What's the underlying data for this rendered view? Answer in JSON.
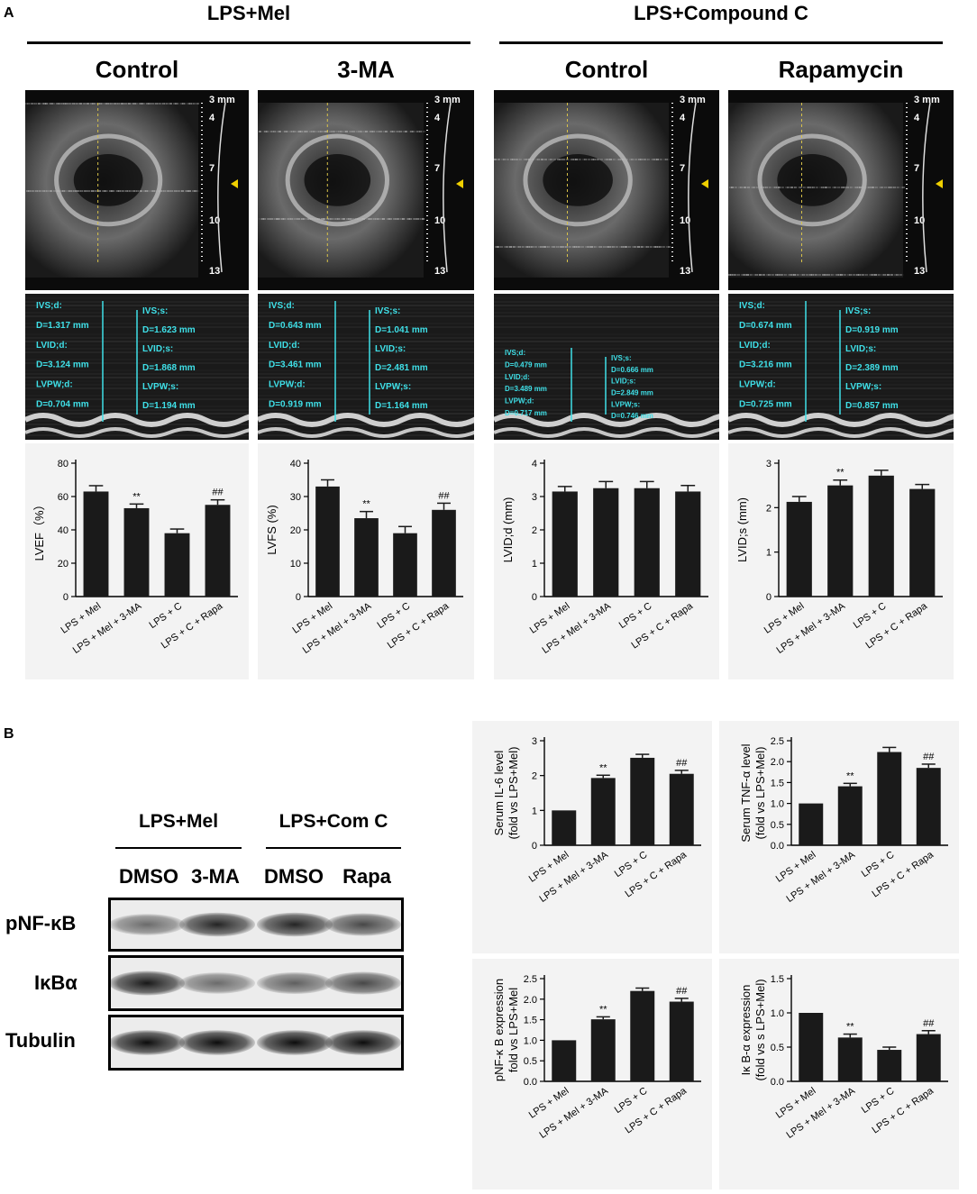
{
  "panel_labels": {
    "a": "A",
    "b": "B"
  },
  "panelA": {
    "group_titles": [
      "LPS+Mel",
      "LPS+Compound C"
    ],
    "columns": [
      {
        "title": "Control",
        "depth_labels": [
          "3 mm",
          "4",
          "7",
          "10",
          "13"
        ],
        "measures_left": [
          "IVS;d:",
          "D=1.317 mm",
          "LVID;d:",
          "D=3.124 mm",
          "LVPW;d:",
          "D=0.704 mm"
        ],
        "measures_right": [
          "IVS;s:",
          "D=1.623 mm",
          "LVID;s:",
          "D=1.868 mm",
          "LVPW;s:",
          "D=1.194 mm"
        ]
      },
      {
        "title": "3-MA",
        "depth_labels": [
          "3 mm",
          "4",
          "7",
          "10",
          "13"
        ],
        "measures_left": [
          "IVS;d:",
          "D=0.643 mm",
          "LVID;d:",
          "D=3.461 mm",
          "LVPW;d:",
          "D=0.919 mm"
        ],
        "measures_right": [
          "IVS;s:",
          "D=1.041 mm",
          "LVID;s:",
          "D=2.481 mm",
          "LVPW;s:",
          "D=1.164 mm"
        ]
      },
      {
        "title": "Control",
        "depth_labels": [
          "3 mm",
          "4",
          "7",
          "10",
          "13"
        ],
        "measures_left": [
          "IVS;d:",
          "D=0.479 mm",
          "LVID;d:",
          "D=3.489 mm",
          "LVPW;d:",
          "D=0.717 mm"
        ],
        "measures_right": [
          "IVS;s:",
          "D=0.666 mm",
          "LVID;s:",
          "D=2.849 mm",
          "LVPW;s:",
          "D=0.746 mm"
        ]
      },
      {
        "title": "Rapamycin",
        "depth_labels": [
          "3 mm",
          "4",
          "7",
          "10",
          "13"
        ],
        "measures_left": [
          "IVS;d:",
          "D=0.674 mm",
          "LVID;d:",
          "D=3.216 mm",
          "LVPW;d:",
          "D=0.725 mm"
        ],
        "measures_right": [
          "IVS;s:",
          "D=0.919 mm",
          "LVID;s:",
          "D=2.389 mm",
          "LVPW;s:",
          "D=0.857 mm"
        ]
      }
    ]
  },
  "panelB": {
    "wb_groups": [
      "LPS+Mel",
      "LPS+Com C"
    ],
    "wb_lanes": [
      "DMSO",
      "3-MA",
      "DMSO",
      "Rapa"
    ],
    "wb_rows": [
      "pNF-κB",
      "IκBα",
      "Tubulin"
    ],
    "wb_band_intensity": [
      [
        0.55,
        0.85,
        0.85,
        0.7
      ],
      [
        0.9,
        0.55,
        0.6,
        0.7
      ],
      [
        0.95,
        0.95,
        0.95,
        0.95
      ]
    ]
  },
  "chart_data": [
    {
      "type": "bar",
      "categories": [
        "LPS + Mel",
        "LPS + Mel + 3-MA",
        "LPS + C",
        "LPS + C + Rapa"
      ],
      "values": [
        63,
        53,
        38,
        55
      ],
      "errors": [
        3.5,
        2.5,
        2.5,
        3
      ],
      "annotations": [
        "",
        "**",
        "",
        "##"
      ],
      "ylabel": "LVEF（%）",
      "ylim": [
        0,
        80
      ],
      "yticks": [
        0,
        20,
        40,
        60,
        80
      ],
      "grid": false
    },
    {
      "type": "bar",
      "categories": [
        "LPS + Mel",
        "LPS + Mel + 3-MA",
        "LPS + C",
        "LPS + C + Rapa"
      ],
      "values": [
        33,
        23.5,
        19,
        26
      ],
      "errors": [
        2,
        2,
        2,
        2
      ],
      "annotations": [
        "",
        "**",
        "",
        "##"
      ],
      "ylabel": "LVFS (%)",
      "ylim": [
        0,
        40
      ],
      "yticks": [
        0,
        10,
        20,
        30,
        40
      ],
      "grid": false
    },
    {
      "type": "bar",
      "categories": [
        "LPS + Mel",
        "LPS + Mel + 3-MA",
        "LPS + C",
        "LPS + C + Rapa"
      ],
      "values": [
        3.15,
        3.25,
        3.25,
        3.15
      ],
      "errors": [
        0.15,
        0.2,
        0.2,
        0.18
      ],
      "annotations": [
        "",
        "",
        "",
        ""
      ],
      "ylabel": "LVID;d (mm)",
      "ylim": [
        0,
        4
      ],
      "yticks": [
        0,
        1,
        2,
        3,
        4
      ],
      "grid": false
    },
    {
      "type": "bar",
      "categories": [
        "LPS + Mel",
        "LPS + Mel + 3-MA",
        "LPS + C",
        "LPS + C + Rapa"
      ],
      "values": [
        2.13,
        2.5,
        2.72,
        2.42
      ],
      "errors": [
        0.12,
        0.12,
        0.12,
        0.1
      ],
      "annotations": [
        "",
        "**",
        "",
        ""
      ],
      "ylabel": "LVID;s (mm)",
      "ylim": [
        0,
        3
      ],
      "yticks": [
        0,
        1,
        2,
        3
      ],
      "grid": false
    },
    {
      "type": "bar",
      "categories": [
        "LPS + Mel",
        "LPS + Mel + 3-MA",
        "LPS + C",
        "LPS + C + Rapa"
      ],
      "values": [
        1.0,
        1.93,
        2.51,
        2.05
      ],
      "errors": [
        0,
        0.08,
        0.1,
        0.1
      ],
      "annotations": [
        "",
        "**",
        "",
        "##"
      ],
      "ylabel": "Serum IL-6  level",
      "ylabel2": "(fold vs LPS+Mel)",
      "ylim": [
        0,
        3
      ],
      "yticks": [
        0,
        1,
        2,
        3
      ],
      "grid": false
    },
    {
      "type": "bar",
      "categories": [
        "LPS + Mel",
        "LPS + Mel + 3-MA",
        "LPS + C",
        "LPS + C + Rapa"
      ],
      "values": [
        1.0,
        1.41,
        2.23,
        1.85
      ],
      "errors": [
        0,
        0.07,
        0.11,
        0.09
      ],
      "annotations": [
        "",
        "**",
        "",
        "##"
      ],
      "ylabel": "Serum TNF-α  level",
      "ylabel2": "(fold vs LPS+Mel)",
      "ylim": [
        0,
        2.5
      ],
      "yticks": [
        0.0,
        0.5,
        1.0,
        1.5,
        2.0,
        2.5
      ],
      "tick_decimals": 1,
      "grid": false
    },
    {
      "type": "bar",
      "categories": [
        "LPS + Mel",
        "LPS + Mel + 3-MA",
        "LPS + C",
        "LPS + C + Rapa"
      ],
      "values": [
        1.0,
        1.51,
        2.2,
        1.94
      ],
      "errors": [
        0,
        0.06,
        0.07,
        0.08
      ],
      "annotations": [
        "",
        "**",
        "",
        "##"
      ],
      "ylabel": "pNF-κ B expression",
      "ylabel2": "fold vs LPS+Mel",
      "ylim": [
        0,
        2.5
      ],
      "yticks": [
        0.0,
        0.5,
        1.0,
        1.5,
        2.0,
        2.5
      ],
      "tick_decimals": 1,
      "grid": false
    },
    {
      "type": "bar",
      "categories": [
        "LPS + Mel",
        "LPS + Mel + 3-MA",
        "LPS + C",
        "LPS + C + Rapa"
      ],
      "values": [
        1.0,
        0.64,
        0.46,
        0.69
      ],
      "errors": [
        0,
        0.05,
        0.04,
        0.05
      ],
      "annotations": [
        "",
        "**",
        "",
        "##"
      ],
      "ylabel": "Iκ B-α  expression",
      "ylabel2": "(fold vs s LPS+Mel)",
      "ylim": [
        0,
        1.5
      ],
      "yticks": [
        0.0,
        0.5,
        1.0,
        1.5
      ],
      "tick_decimals": 1,
      "grid": false
    }
  ]
}
